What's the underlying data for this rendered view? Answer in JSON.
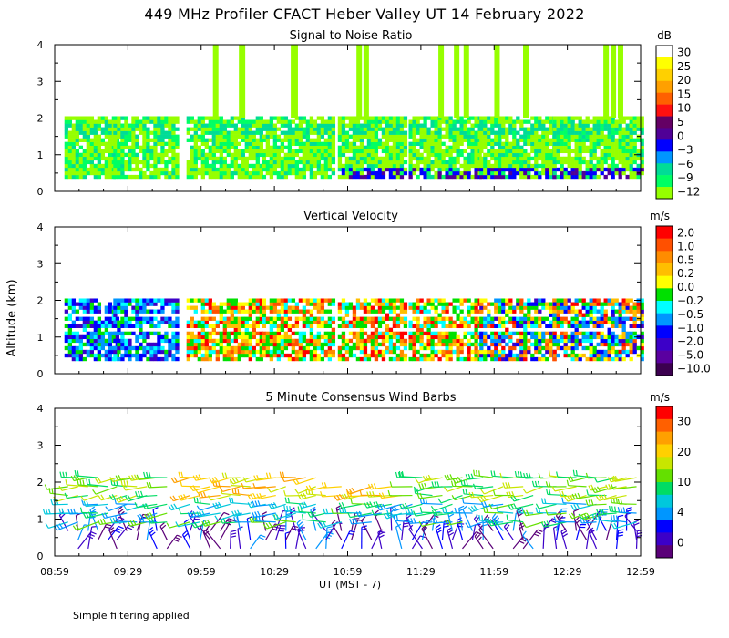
{
  "title": "449 MHz Profiler CFACT Heber Valley UT 14 February 2022",
  "footnote": "Simple filtering applied",
  "shared": {
    "ylabel": "Altitude (km)",
    "xlabel": "UT  (MST - 7)",
    "x_ticks": [
      "08:59",
      "09:29",
      "09:59",
      "10:29",
      "10:59",
      "11:29",
      "11:59",
      "12:29",
      "12:59"
    ],
    "y_ticks": [
      "0",
      "1",
      "2",
      "3",
      "4"
    ]
  },
  "chart_data": [
    {
      "type": "heatmap",
      "title": "Signal to Noise Ratio",
      "units": "dB",
      "xlim": [
        "08:59",
        "12:59"
      ],
      "ylim": [
        0,
        4
      ],
      "colorbar_labels": [
        "30",
        "25",
        "20",
        "15",
        "10",
        "5",
        "0",
        "−3",
        "−6",
        "−9",
        "−12"
      ],
      "colorbar_colors": [
        "#ffffff",
        "#ffff00",
        "#ffd000",
        "#ffa000",
        "#ff6000",
        "#ff1010",
        "#640064",
        "#500096",
        "#0000ff",
        "#0096ff",
        "#00dc96",
        "#00ff64",
        "#96ff00"
      ],
      "scans": [
        {
          "start": "09:03",
          "end": "09:24",
          "top_km": 2.0
        },
        {
          "start": "09:23",
          "end": "09:49",
          "top_km": 2.0
        },
        {
          "start": "09:53",
          "end": "10:23",
          "top_km": 4.0
        },
        {
          "start": "10:24",
          "end": "10:53",
          "top_km": 4.0
        },
        {
          "start": "10:55",
          "end": "11:23",
          "top_km": 4.0
        },
        {
          "start": "11:24",
          "end": "11:53",
          "top_km": 4.0
        },
        {
          "start": "11:53",
          "end": "12:23",
          "top_km": 4.0
        },
        {
          "start": "12:23",
          "end": "12:59",
          "top_km": 4.0
        }
      ]
    },
    {
      "type": "heatmap",
      "title": "Vertical Velocity",
      "units": "m/s",
      "xlim": [
        "08:59",
        "12:59"
      ],
      "ylim": [
        0,
        4
      ],
      "colorbar_labels": [
        "2.0",
        "1.0",
        "0.5",
        "0.2",
        "0.0",
        "−0.2",
        "−0.5",
        "−1.0",
        "−2.0",
        "−5.0",
        "−10.0"
      ],
      "colorbar_colors": [
        "#ff0000",
        "#ff5000",
        "#ff8c00",
        "#ffbe00",
        "#ffff00",
        "#00e000",
        "#00ffff",
        "#0096ff",
        "#0000ff",
        "#3c00c8",
        "#5a00a0",
        "#3c0050"
      ]
    },
    {
      "type": "scatter",
      "title": "5 Minute Consensus Wind Barbs",
      "units": "m/s",
      "xlim": [
        "08:59",
        "12:59"
      ],
      "ylim": [
        0,
        4
      ],
      "colorbar_labels": [
        "30",
        "20",
        "10",
        "4",
        "0"
      ],
      "colorbar_colors": [
        "#ff0000",
        "#ff6000",
        "#ffa000",
        "#ffd000",
        "#c8e600",
        "#64e000",
        "#00dc64",
        "#00c8dc",
        "#0096ff",
        "#0000ff",
        "#3c00c8",
        "#5a0078"
      ]
    }
  ]
}
